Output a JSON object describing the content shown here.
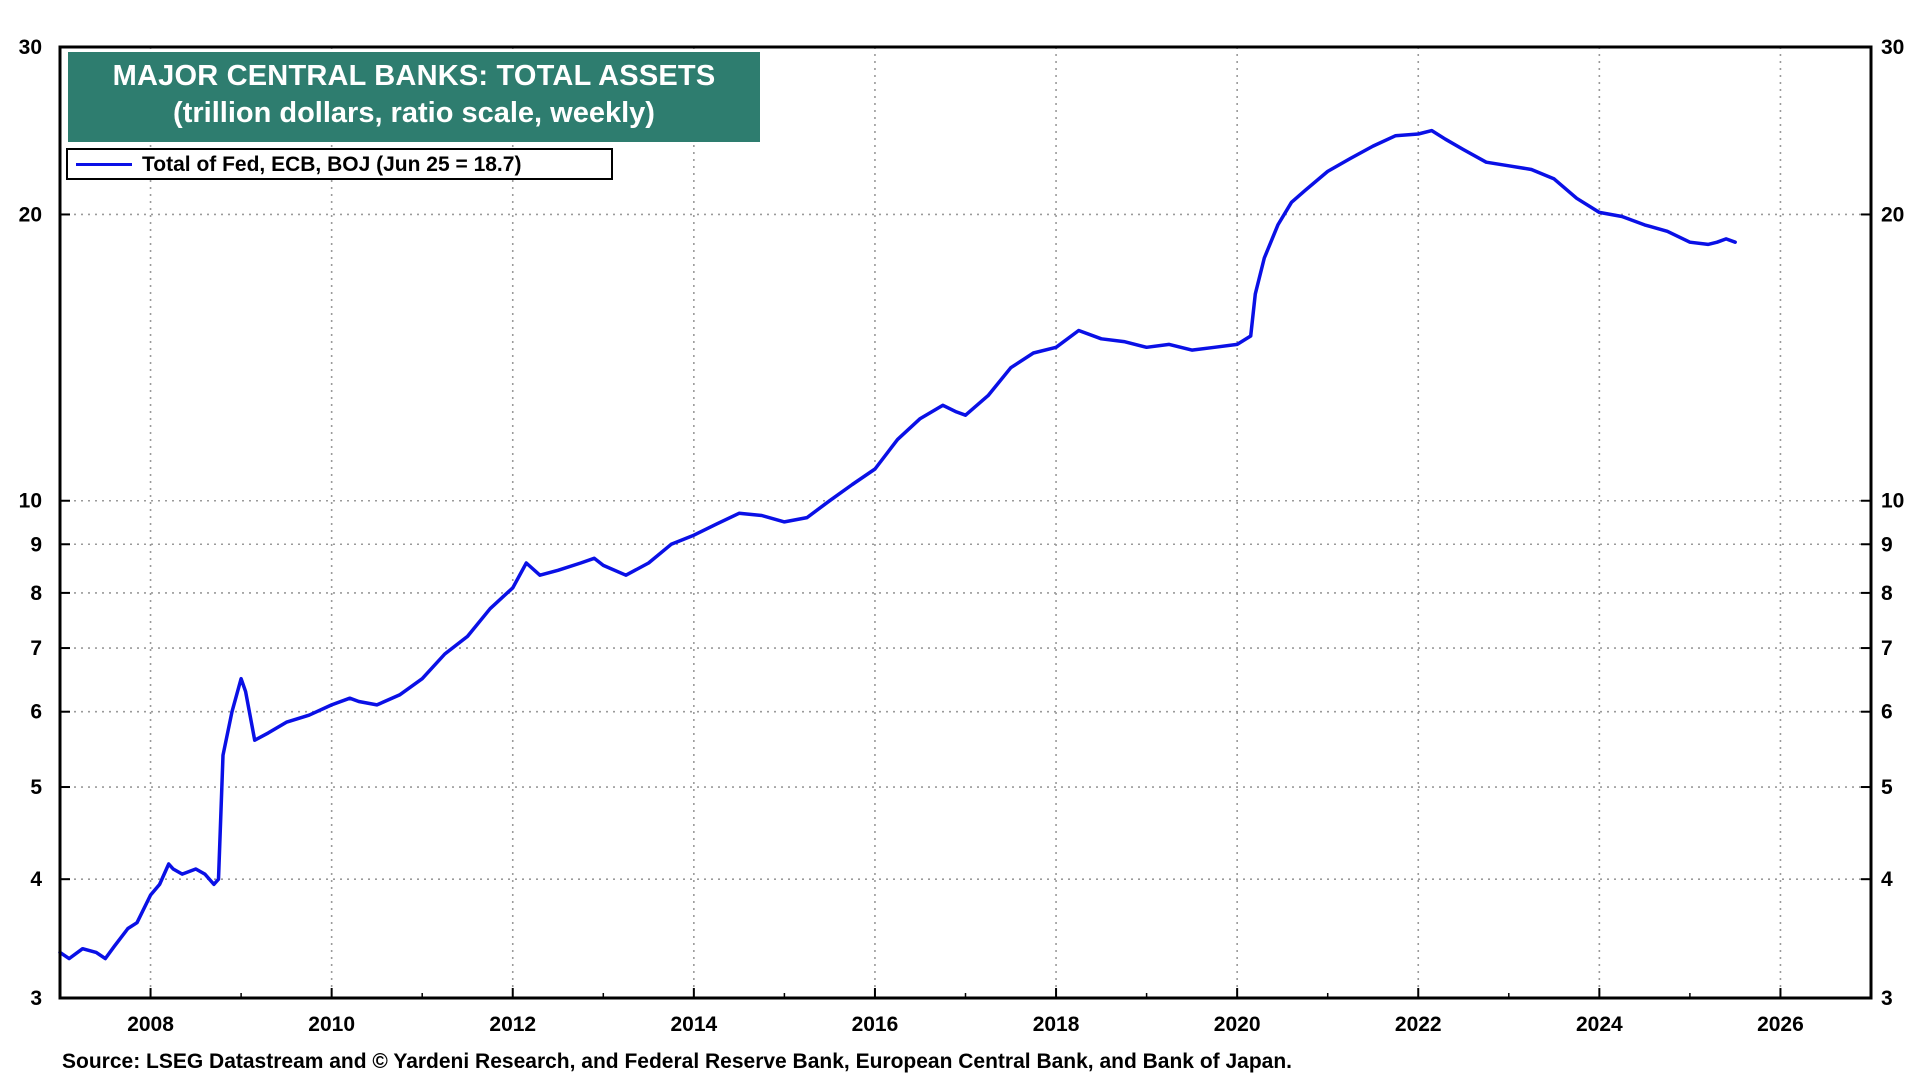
{
  "chart_data": {
    "type": "line",
    "title": "MAJOR CENTRAL BANKS: TOTAL ASSETS",
    "subtitle": "(trillion dollars, ratio scale, weekly)",
    "y_scale": "log",
    "xlim": [
      2007.0,
      2027.0
    ],
    "ylim": [
      3,
      30
    ],
    "x_ticks": [
      2008,
      2010,
      2012,
      2014,
      2016,
      2018,
      2020,
      2022,
      2024,
      2026
    ],
    "x_tick_labels": [
      "2008",
      "2010",
      "2012",
      "2014",
      "2016",
      "2018",
      "2020",
      "2022",
      "2024",
      "2026"
    ],
    "y_ticks": [
      3,
      4,
      5,
      6,
      7,
      8,
      9,
      10,
      20,
      30
    ],
    "y_tick_labels": [
      "3",
      "4",
      "5",
      "6",
      "7",
      "8",
      "9",
      "10",
      "20",
      "30"
    ],
    "grid": true,
    "legend_position": "top-left",
    "series": [
      {
        "name": "Total of Fed, ECB, BOJ (Jun 25 = 18.7)",
        "color": "#0a10e6",
        "x": [
          2007.0,
          2007.1,
          2007.25,
          2007.4,
          2007.5,
          2007.6,
          2007.75,
          2007.85,
          2008.0,
          2008.1,
          2008.2,
          2008.25,
          2008.35,
          2008.5,
          2008.6,
          2008.7,
          2008.75,
          2008.8,
          2008.9,
          2009.0,
          2009.05,
          2009.15,
          2009.3,
          2009.5,
          2009.75,
          2010.0,
          2010.2,
          2010.3,
          2010.5,
          2010.75,
          2011.0,
          2011.25,
          2011.5,
          2011.75,
          2012.0,
          2012.15,
          2012.3,
          2012.5,
          2012.75,
          2012.9,
          2013.0,
          2013.25,
          2013.5,
          2013.75,
          2014.0,
          2014.25,
          2014.5,
          2014.75,
          2015.0,
          2015.25,
          2015.5,
          2015.75,
          2016.0,
          2016.25,
          2016.5,
          2016.75,
          2016.9,
          2017.0,
          2017.25,
          2017.5,
          2017.75,
          2018.0,
          2018.25,
          2018.5,
          2018.75,
          2019.0,
          2019.25,
          2019.5,
          2019.75,
          2020.0,
          2020.15,
          2020.2,
          2020.3,
          2020.45,
          2020.6,
          2020.75,
          2021.0,
          2021.25,
          2021.5,
          2021.75,
          2022.0,
          2022.15,
          2022.3,
          2022.5,
          2022.75,
          2023.0,
          2023.25,
          2023.5,
          2023.75,
          2024.0,
          2024.25,
          2024.5,
          2024.75,
          2025.0,
          2025.2,
          2025.3,
          2025.4,
          2025.5
        ],
        "values": [
          3.35,
          3.3,
          3.38,
          3.35,
          3.3,
          3.4,
          3.55,
          3.6,
          3.85,
          3.95,
          4.15,
          4.1,
          4.05,
          4.1,
          4.05,
          3.95,
          4.0,
          5.4,
          6.0,
          6.5,
          6.3,
          5.6,
          5.7,
          5.85,
          5.95,
          6.1,
          6.2,
          6.15,
          6.1,
          6.25,
          6.5,
          6.9,
          7.2,
          7.7,
          8.1,
          8.6,
          8.35,
          8.45,
          8.6,
          8.7,
          8.55,
          8.35,
          8.6,
          9.0,
          9.2,
          9.45,
          9.7,
          9.65,
          9.5,
          9.6,
          10.0,
          10.4,
          10.8,
          11.6,
          12.2,
          12.6,
          12.4,
          12.3,
          12.9,
          13.8,
          14.3,
          14.5,
          15.1,
          14.8,
          14.7,
          14.5,
          14.6,
          14.4,
          14.5,
          14.6,
          14.9,
          16.5,
          18.0,
          19.5,
          20.6,
          21.2,
          22.2,
          22.9,
          23.6,
          24.2,
          24.3,
          24.5,
          24.0,
          23.4,
          22.7,
          22.5,
          22.3,
          21.8,
          20.8,
          20.1,
          19.9,
          19.5,
          19.2,
          18.7,
          18.6,
          18.7,
          18.85,
          18.7
        ]
      }
    ],
    "source": "Source: LSEG Datastream and © Yardeni Research, and Federal Reserve Bank, European  Central Bank, and Bank of Japan."
  }
}
